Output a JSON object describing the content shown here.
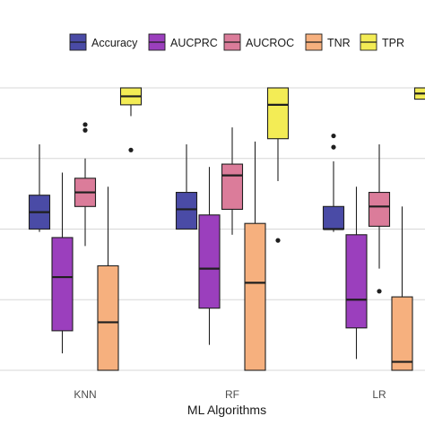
{
  "chart_data": {
    "type": "boxplot",
    "title": "",
    "xlabel": "ML Algorithms",
    "ylabel": "",
    "ylim": [
      0.0,
      1.0
    ],
    "grid": true,
    "legend_position": "top",
    "categories": [
      "KNN",
      "RF",
      "LR"
    ],
    "series": [
      {
        "name": "Accuracy",
        "color": "#4a4ba6",
        "boxes": [
          {
            "category": "KNN",
            "whisker_low": 0.49,
            "q1": 0.5,
            "median": 0.56,
            "q3": 0.62,
            "whisker_high": 0.8,
            "outliers": []
          },
          {
            "category": "RF",
            "whisker_low": 0.5,
            "q1": 0.5,
            "median": 0.57,
            "q3": 0.63,
            "whisker_high": 0.8,
            "outliers": []
          },
          {
            "category": "LR",
            "whisker_low": 0.49,
            "q1": 0.5,
            "median": 0.5,
            "q3": 0.58,
            "whisker_high": 0.74,
            "outliers": [
              0.79,
              0.83
            ]
          }
        ]
      },
      {
        "name": "AUCPRC",
        "color": "#9b3fbd",
        "boxes": [
          {
            "category": "KNN",
            "whisker_low": 0.06,
            "q1": 0.14,
            "median": 0.33,
            "q3": 0.47,
            "whisker_high": 0.7,
            "outliers": []
          },
          {
            "category": "RF",
            "whisker_low": 0.09,
            "q1": 0.22,
            "median": 0.36,
            "q3": 0.55,
            "whisker_high": 0.72,
            "outliers": []
          },
          {
            "category": "LR",
            "whisker_low": 0.04,
            "q1": 0.15,
            "median": 0.25,
            "q3": 0.48,
            "whisker_high": 0.65,
            "outliers": []
          }
        ]
      },
      {
        "name": "AUCROC",
        "color": "#db7c9a",
        "boxes": [
          {
            "category": "KNN",
            "whisker_low": 0.44,
            "q1": 0.58,
            "median": 0.63,
            "q3": 0.68,
            "whisker_high": 0.75,
            "outliers": [
              0.85,
              0.87
            ]
          },
          {
            "category": "RF",
            "whisker_low": 0.48,
            "q1": 0.57,
            "median": 0.69,
            "q3": 0.73,
            "whisker_high": 0.86,
            "outliers": []
          },
          {
            "category": "LR",
            "whisker_low": 0.36,
            "q1": 0.51,
            "median": 0.58,
            "q3": 0.63,
            "whisker_high": 0.8,
            "outliers": [
              0.28
            ]
          }
        ]
      },
      {
        "name": "TNR",
        "color": "#f6b07e",
        "boxes": [
          {
            "category": "KNN",
            "whisker_low": 0.0,
            "q1": 0.0,
            "median": 0.17,
            "q3": 0.37,
            "whisker_high": 0.65,
            "outliers": []
          },
          {
            "category": "RF",
            "whisker_low": 0.0,
            "q1": 0.0,
            "median": 0.31,
            "q3": 0.52,
            "whisker_high": 0.81,
            "outliers": []
          },
          {
            "category": "LR",
            "whisker_low": 0.0,
            "q1": 0.0,
            "median": 0.03,
            "q3": 0.26,
            "whisker_high": 0.58,
            "outliers": []
          }
        ]
      },
      {
        "name": "TPR",
        "color": "#f3ec55",
        "boxes": [
          {
            "category": "KNN",
            "whisker_low": 0.9,
            "q1": 0.94,
            "median": 0.97,
            "q3": 1.0,
            "whisker_high": 1.0,
            "outliers": [
              0.78
            ]
          },
          {
            "category": "RF",
            "whisker_low": 0.67,
            "q1": 0.82,
            "median": 0.94,
            "q3": 1.0,
            "whisker_high": 1.0,
            "outliers": [
              0.46
            ]
          },
          {
            "category": "LR",
            "whisker_low": 0.96,
            "q1": 0.96,
            "median": 0.98,
            "q3": 1.0,
            "whisker_high": 1.0,
            "outliers": []
          }
        ]
      }
    ]
  }
}
